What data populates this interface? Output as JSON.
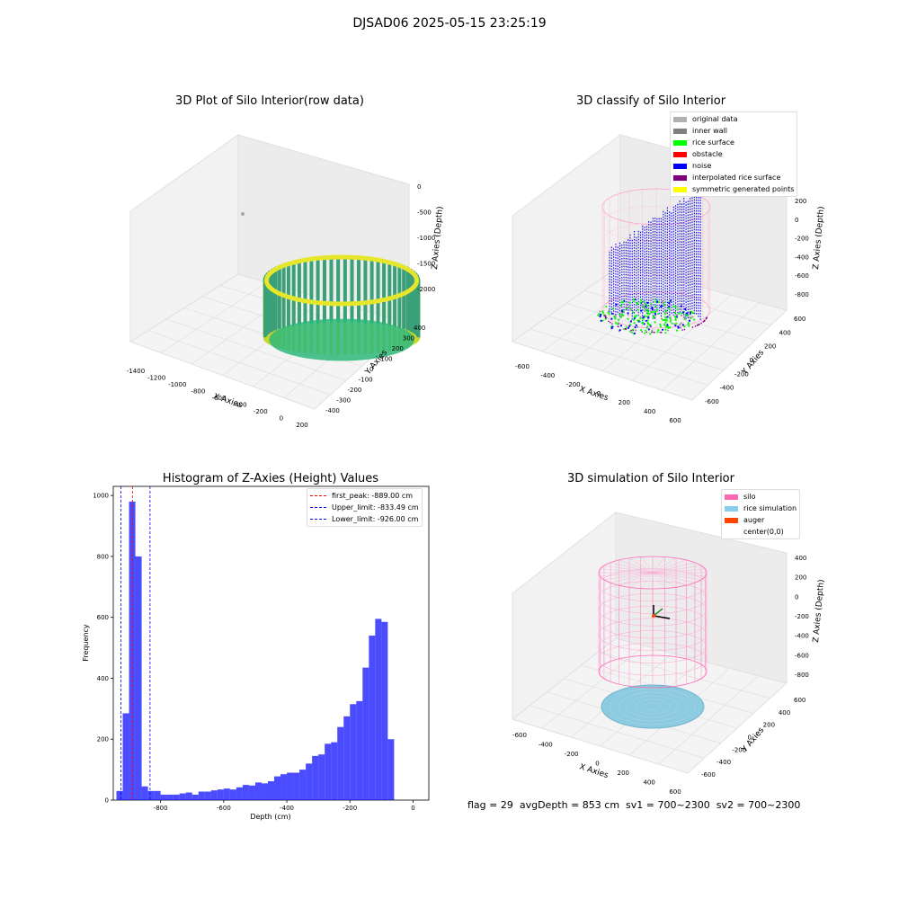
{
  "figure": {
    "suptitle": "DJSAD06 2025-05-15 23:25:19",
    "bottom_text": "flag = 29  avgDepth = 853 cm  sv1 = 700~2300  sv2 = 700~2300"
  },
  "chart_data": [
    {
      "type": "scatter",
      "title": "3D Plot of Silo Interior(row data)",
      "xlabel": "X Axies",
      "ylabel": "Y Axies",
      "zlabel": "Z Axies (Depth)",
      "x_ticks": [
        "-1400",
        "-1200",
        "-1000",
        "-800",
        "-600",
        "-400",
        "-200",
        "0",
        "200"
      ],
      "y_ticks": [
        "-400",
        "-300",
        "-200",
        "-100",
        "0",
        "100",
        "200",
        "300",
        "400"
      ],
      "z_ticks": [
        "0",
        "-500",
        "-1000",
        "-1500",
        "-2000"
      ],
      "colormap": "viridis",
      "points": "approx. 3D point cloud of the silo wall, depth 0 to -2000"
    },
    {
      "type": "scatter",
      "title": "3D classify of Silo Interior",
      "xlabel": "X Axies",
      "ylabel": "Y Axies",
      "zlabel": "Z Axies (Depth)",
      "x_ticks": [
        "-600",
        "-400",
        "-200",
        "0",
        "200",
        "400",
        "600"
      ],
      "y_ticks": [
        "-600",
        "-400",
        "-200",
        "0",
        "200",
        "400",
        "600"
      ],
      "z_ticks": [
        "200",
        "0",
        "-200",
        "-400",
        "-600",
        "-800"
      ],
      "legend": [
        {
          "label": "original data",
          "color": "#b0b0b0"
        },
        {
          "label": "inner wall",
          "color": "#808080"
        },
        {
          "label": "rice surface",
          "color": "#00ff00"
        },
        {
          "label": "obstacle",
          "color": "#ff0000"
        },
        {
          "label": "noise",
          "color": "#0000ff"
        },
        {
          "label": "interpolated rice surface",
          "color": "#800080"
        },
        {
          "label": "symmetric generated points",
          "color": "#ffff00"
        }
      ],
      "legend_placement": "top-right"
    },
    {
      "type": "bar",
      "title": "Histogram of Z-Axies (Height) Values",
      "xlabel": "Depth (cm)",
      "ylabel": "Frequency",
      "xlim": [
        -950,
        50
      ],
      "ylim": [
        0,
        1030
      ],
      "x_ticks": [
        -800,
        -600,
        -400,
        -200,
        0
      ],
      "y_ticks": [
        0,
        200,
        400,
        600,
        800,
        1000
      ],
      "bin_width": 20,
      "bins_start": [
        -940,
        -920,
        -900,
        -880,
        -860,
        -840,
        -820,
        -800,
        -780,
        -760,
        -740,
        -720,
        -700,
        -680,
        -660,
        -640,
        -620,
        -600,
        -580,
        -560,
        -540,
        -520,
        -500,
        -480,
        -460,
        -440,
        -420,
        -400,
        -380,
        -360,
        -340,
        -320,
        -300,
        -280,
        -260,
        -240,
        -220,
        -200,
        -180,
        -160,
        -140,
        -120,
        -100,
        -80,
        -60,
        -40,
        -20
      ],
      "values": [
        30,
        285,
        980,
        800,
        45,
        30,
        30,
        18,
        18,
        18,
        22,
        25,
        18,
        28,
        28,
        32,
        35,
        38,
        35,
        42,
        50,
        48,
        58,
        55,
        62,
        78,
        85,
        90,
        90,
        100,
        120,
        145,
        150,
        185,
        190,
        240,
        275,
        315,
        325,
        435,
        540,
        595,
        585,
        200,
        0,
        0,
        0
      ],
      "color": "#0000ff",
      "reference_lines": [
        {
          "label": "first_peak: -889.00 cm",
          "x": -889.0,
          "color": "#ff0000"
        },
        {
          "label": "Upper_limit: -833.49 cm",
          "x": -833.49,
          "color": "#0000ff"
        },
        {
          "label": "Lower_limit: -926.00 cm",
          "x": -926.0,
          "color": "#0000ff"
        }
      ],
      "legend_placement": "top-right"
    },
    {
      "type": "scatter",
      "title": "3D simulation of Silo Interior",
      "xlabel": "X Axies",
      "ylabel": "Y Axies",
      "zlabel": "Z Axies (Depth)",
      "x_ticks": [
        "-600",
        "-400",
        "-200",
        "0",
        "200",
        "400",
        "600"
      ],
      "y_ticks": [
        "-600",
        "-400",
        "-200",
        "0",
        "200",
        "400",
        "600"
      ],
      "z_ticks": [
        "400",
        "200",
        "0",
        "-200",
        "-400",
        "-600",
        "-800"
      ],
      "legend": [
        {
          "label": "silo",
          "color": "#ff69b4"
        },
        {
          "label": "rice simulation",
          "color": "#87ceeb"
        },
        {
          "label": "auger",
          "color": "#ff4500"
        },
        {
          "label": "center(0,0)",
          "color": "#ffffff"
        }
      ],
      "legend_placement": "top-right"
    }
  ]
}
